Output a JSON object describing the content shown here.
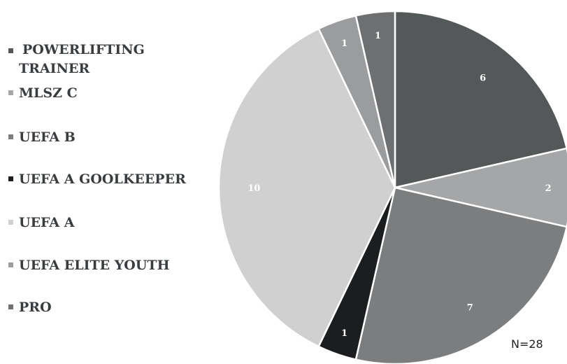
{
  "chart_data": {
    "type": "pie",
    "categories": [
      "POWERLIFTING TRAINER",
      "MLSZ C",
      "UEFA B",
      "UEFA A GOOLKEEPER",
      "UEFA A",
      "UEFA ELITE YOUTH",
      "PRO"
    ],
    "values": [
      6,
      2,
      7,
      1,
      10,
      1,
      1
    ],
    "colors": [
      "#555859",
      "#a5a6a7",
      "#7b7d7e",
      "#1b1d1f",
      "#d0d0d0",
      "#9b9c9d",
      "#6d6f71"
    ],
    "annotation": "N=28",
    "legend_position": "left"
  }
}
